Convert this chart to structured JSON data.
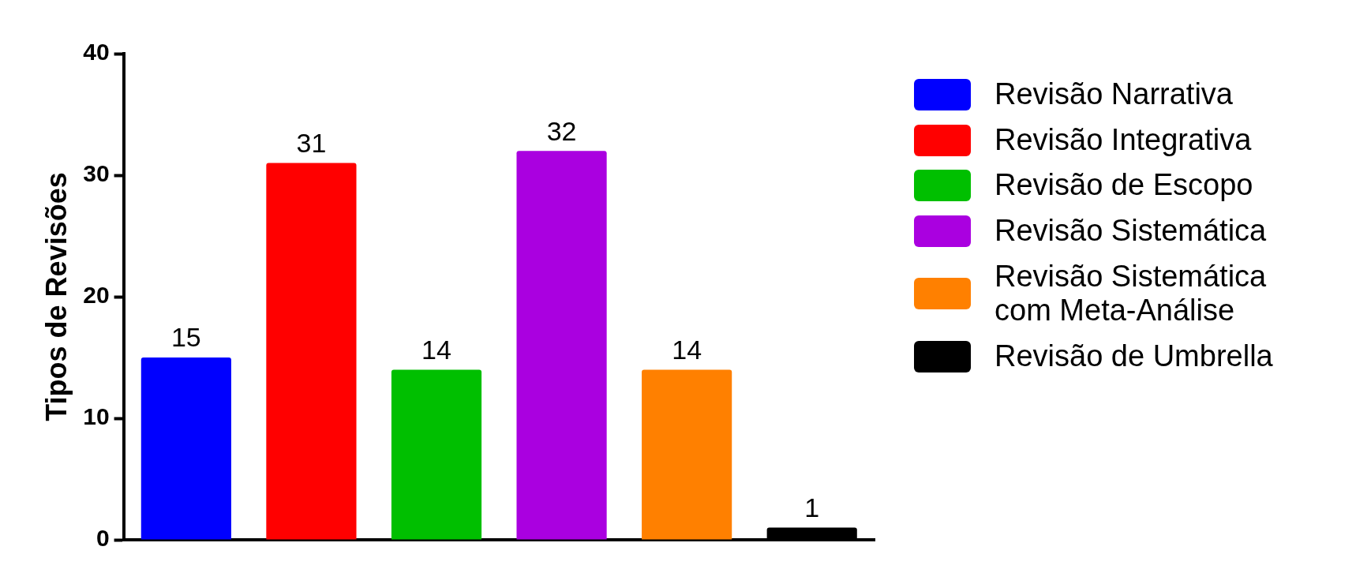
{
  "chart_data": {
    "type": "bar",
    "ylabel": "Tipos de Revisões",
    "categories": [
      null,
      null,
      null,
      null,
      null,
      null
    ],
    "series": [
      {
        "name": "Revisão Narrativa",
        "color": "#0000ff",
        "values": [
          15,
          null,
          null,
          null,
          null,
          null
        ]
      },
      {
        "name": "Revisão Integrativa",
        "color": "#ff0000",
        "values": [
          null,
          31,
          null,
          null,
          null,
          null
        ]
      },
      {
        "name": "Revisão de Escopo",
        "color": "#00bf00",
        "values": [
          null,
          null,
          14,
          null,
          null,
          null
        ]
      },
      {
        "name": "Revisão Sistemática",
        "color": "#aa00e0",
        "values": [
          null,
          null,
          null,
          32,
          null,
          null
        ]
      },
      {
        "name": "Revisão Sistemática com Meta-Análise",
        "color": "#ff8000",
        "values": [
          null,
          null,
          null,
          null,
          14,
          null
        ]
      },
      {
        "name": "Revisão de Umbrella",
        "color": "#000000",
        "values": [
          null,
          null,
          null,
          null,
          null,
          1
        ]
      }
    ],
    "ylim": [
      0,
      40
    ],
    "yticks": [
      0,
      10,
      20,
      30,
      40
    ],
    "data_labels": true,
    "grid": false,
    "legend": "right",
    "tick_labels": "y"
  }
}
